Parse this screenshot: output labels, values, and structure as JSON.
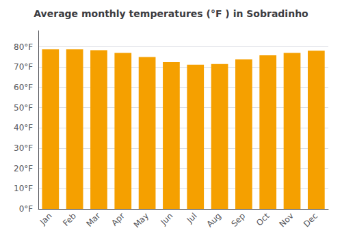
{
  "chart_data": {
    "type": "bar",
    "title": "Average monthly temperatures (°F ) in Sobradinho",
    "categories": [
      "Jan",
      "Feb",
      "Mar",
      "Apr",
      "May",
      "Jun",
      "Jul",
      "Aug",
      "Sep",
      "Oct",
      "Nov",
      "Dec"
    ],
    "values": [
      78.8,
      78.8,
      78.4,
      77.0,
      75.0,
      72.5,
      71.2,
      71.6,
      73.8,
      75.9,
      77.0,
      78.1
    ],
    "color": "#F5A000",
    "ylim": [
      0,
      88
    ],
    "yticks": [
      {
        "value": 0,
        "label": "0°F"
      },
      {
        "value": 10,
        "label": "10°F"
      },
      {
        "value": 20,
        "label": "20°F"
      },
      {
        "value": 30,
        "label": "30°F"
      },
      {
        "value": 40,
        "label": "40°F"
      },
      {
        "value": 50,
        "label": "50°F"
      },
      {
        "value": 60,
        "label": "60°F"
      },
      {
        "value": 70,
        "label": "70°F"
      },
      {
        "value": 80,
        "label": "80°F"
      }
    ],
    "grid": true
  }
}
